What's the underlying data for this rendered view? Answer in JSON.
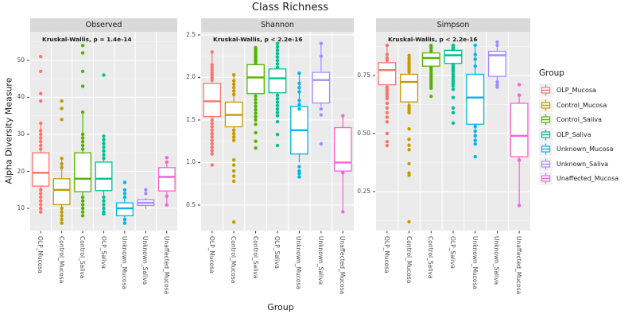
{
  "figure": {
    "title": "Class Richness",
    "x_axis_title": "Group",
    "y_axis_title": "Alpha Diversity Measure"
  },
  "legend": {
    "title": "Group",
    "entries": [
      {
        "label": "OLP_Mucosa",
        "color": "#F8766D"
      },
      {
        "label": "Control_Mucosa",
        "color": "#C49A00"
      },
      {
        "label": "Control_Saliva",
        "color": "#53B400"
      },
      {
        "label": "OLP_Saliva",
        "color": "#00C094"
      },
      {
        "label": "Unknown_Mucosa",
        "color": "#00B6EB"
      },
      {
        "label": "Unknown_Saliva",
        "color": "#A58AFF"
      },
      {
        "label": "Unaffected_Mucosa",
        "color": "#FB61D7"
      }
    ]
  },
  "theme": {
    "panel_bg": "#EBEBEB",
    "strip_bg": "#D9D9D9",
    "grid_color": "#FFFFFF",
    "tick_color": "#333333",
    "tick_label_color": "#4D4D4D",
    "text_color": "#1A1A1A",
    "legend_key_bg": "#F2F2F2"
  },
  "chart_data": {
    "type": "boxplot",
    "title": "Class Richness",
    "xlabel": "Group",
    "ylabel": "Alpha Diversity Measure",
    "legend_position": "right",
    "grid": "on",
    "points_overlay": true,
    "categories": [
      "OLP_Mucosa",
      "Control_Mucosa",
      "Control_Saliva",
      "OLP_Saliva",
      "Unknown_Mucosa",
      "Unknown_Saliva",
      "Unaffected_Mucosa"
    ],
    "facets": [
      {
        "label": "Observed",
        "annotation": "Kruskal-Wallis, p = 1.4e-14",
        "ylim": [
          4,
          57.7
        ],
        "yticks": [
          {
            "v": 10,
            "label": "10"
          },
          {
            "v": 20,
            "label": "20"
          },
          {
            "v": 30,
            "label": "30"
          },
          {
            "v": 40,
            "label": "40"
          },
          {
            "v": 50,
            "label": "50"
          }
        ],
        "groups": [
          {
            "group": "OLP_Mucosa",
            "q1": 16,
            "median": 19.6,
            "q3": 25,
            "whisker_low": 9,
            "whisker_high": 33,
            "points": [
              51,
              47,
              41,
              39,
              33,
              31,
              30,
              29,
              28,
              27,
              26,
              15,
              14,
              13,
              12,
              11,
              10,
              9
            ]
          },
          {
            "group": "Control_Mucosa",
            "q1": 11,
            "median": 15,
            "q3": 18,
            "whisker_low": 6,
            "whisker_high": 23.5,
            "points": [
              39,
              37,
              34,
              23.5,
              22,
              21,
              10,
              9,
              8,
              7,
              6
            ]
          },
          {
            "group": "Control_Saliva",
            "q1": 14.5,
            "median": 18,
            "q3": 25,
            "whisker_low": 8,
            "whisker_high": 36,
            "points": [
              54,
              52,
              47,
              43,
              36,
              30,
              29,
              28,
              27,
              26,
              13,
              12,
              11,
              10,
              9,
              8
            ]
          },
          {
            "group": "OLP_Saliva",
            "q1": 14.8,
            "median": 18,
            "q3": 22.5,
            "whisker_low": 8.5,
            "whisker_high": 29.5,
            "points": [
              46,
              29.5,
              28.5,
              27.5,
              26.5,
              25.5,
              24.5,
              23.5,
              13,
              12,
              11,
              10,
              9,
              8.5
            ]
          },
          {
            "group": "Unknown_Mucosa",
            "q1": 8,
            "median": 10,
            "q3": 11.5,
            "whisker_low": 6,
            "whisker_high": 12.7,
            "points": [
              17,
              15,
              14,
              13,
              7,
              6
            ]
          },
          {
            "group": "Unknown_Saliva",
            "q1": 10.8,
            "median": 11.5,
            "q3": 12.3,
            "whisker_low": 9.8,
            "whisker_high": 12.8,
            "points": [
              15,
              14
            ]
          },
          {
            "group": "Unaffected_Mucosa",
            "q1": 14.7,
            "median": 18.5,
            "q3": 21,
            "whisker_low": 10.9,
            "whisker_high": 22.4,
            "points": [
              23.7,
              22.5,
              13.3,
              10.9
            ]
          }
        ]
      },
      {
        "label": "Shannon",
        "annotation": "Kruskal-Wallis, p < 2.2e-16",
        "ylim": [
          0.2,
          2.537
        ],
        "yticks": [
          {
            "v": 0.5,
            "label": "0.5"
          },
          {
            "v": 1.0,
            "label": "1.0"
          },
          {
            "v": 1.5,
            "label": "1.5"
          },
          {
            "v": 2.0,
            "label": "2.0"
          },
          {
            "v": 2.5,
            "label": "2.5"
          }
        ],
        "groups": [
          {
            "group": "OLP_Mucosa",
            "q1": 1.54,
            "median": 1.72,
            "q3": 1.93,
            "whisker_low": 1.08,
            "whisker_high": 2.3,
            "points": [
              2.3,
              2.15,
              2.12,
              2.09,
              2.06,
              2.03,
              2.0,
              1.97,
              1.5,
              1.46,
              1.42,
              1.38,
              1.34,
              1.3,
              1.26,
              1.22,
              1.18,
              1.14,
              1.1,
              0.97
            ]
          },
          {
            "group": "Control_Mucosa",
            "q1": 1.42,
            "median": 1.56,
            "q3": 1.71,
            "whisker_low": 1.25,
            "whisker_high": 2.03,
            "points": [
              2.03,
              1.96,
              1.92,
              1.88,
              1.84,
              1.8,
              1.38,
              1.34,
              1.3,
              1.26,
              1.03,
              0.97,
              0.9,
              0.84,
              0.78,
              0.3
            ]
          },
          {
            "group": "Control_Saliva",
            "q1": 1.81,
            "median": 2.0,
            "q3": 2.15,
            "whisker_low": 1.5,
            "whisker_high": 2.35,
            "points": [
              2.35,
              2.33,
              2.31,
              2.29,
              2.27,
              2.25,
              2.23,
              2.21,
              2.19,
              2.17,
              1.78,
              1.74,
              1.7,
              1.66,
              1.62,
              1.58,
              1.54,
              1.5,
              1.45,
              1.35,
              1.25,
              1.17
            ]
          },
          {
            "group": "OLP_Saliva",
            "q1": 1.82,
            "median": 1.99,
            "q3": 2.1,
            "whisker_low": 1.55,
            "whisker_high": 2.4,
            "points": [
              2.4,
              2.36,
              2.32,
              2.28,
              2.24,
              2.2,
              2.16,
              2.12,
              1.79,
              1.75,
              1.71,
              1.67,
              1.63,
              1.59,
              1.55,
              1.48,
              1.33,
              1.2
            ]
          },
          {
            "group": "Unknown_Mucosa",
            "q1": 1.1,
            "median": 1.38,
            "q3": 1.66,
            "whisker_low": 1.0,
            "whisker_high": 2.05,
            "points": [
              2.05,
              1.93,
              1.88,
              1.83,
              1.73,
              1.68,
              1.63,
              0.95,
              0.9,
              0.87,
              0.83
            ]
          },
          {
            "group": "Unknown_Saliva",
            "q1": 1.7,
            "median": 1.97,
            "q3": 2.06,
            "whisker_low": 1.66,
            "whisker_high": 2.4,
            "points": [
              2.4,
              2.25,
              1.63,
              1.56,
              1.22
            ]
          },
          {
            "group": "Unaffected_Mucosa",
            "q1": 0.9,
            "median": 1.0,
            "q3": 1.41,
            "whisker_low": 0.42,
            "whisker_high": 1.55,
            "points": [
              1.55,
              0.88,
              0.42
            ]
          }
        ]
      },
      {
        "label": "Simpson",
        "annotation": "Kruskal-Wallis, p < 2.2e-16",
        "ylim": [
          0.082,
          0.938
        ],
        "yticks": [
          {
            "v": 0.25,
            "label": "0.25"
          },
          {
            "v": 0.5,
            "label": "0.50"
          },
          {
            "v": 0.75,
            "label": "0.75"
          }
        ],
        "groups": [
          {
            "group": "OLP_Mucosa",
            "q1": 0.71,
            "median": 0.773,
            "q3": 0.805,
            "whisker_low": 0.65,
            "whisker_high": 0.88,
            "points": [
              0.88,
              0.84,
              0.825,
              0.815,
              0.7,
              0.69,
              0.68,
              0.67,
              0.66,
              0.65,
              0.63,
              0.61,
              0.59,
              0.57,
              0.55,
              0.5,
              0.465,
              0.448
            ]
          },
          {
            "group": "Control_Mucosa",
            "q1": 0.636,
            "median": 0.722,
            "q3": 0.755,
            "whisker_low": 0.59,
            "whisker_high": 0.836,
            "points": [
              0.836,
              0.825,
              0.815,
              0.805,
              0.795,
              0.785,
              0.775,
              0.765,
              0.62,
              0.61,
              0.6,
              0.59,
              0.52,
              0.475,
              0.45,
              0.43,
              0.37,
              0.33,
              0.32,
              0.12
            ]
          },
          {
            "group": "Control_Saliva",
            "q1": 0.79,
            "median": 0.825,
            "q3": 0.847,
            "whisker_low": 0.695,
            "whisker_high": 0.879,
            "points": [
              0.879,
              0.871,
              0.863,
              0.855,
              0.785,
              0.775,
              0.765,
              0.755,
              0.745,
              0.735,
              0.725,
              0.715,
              0.705,
              0.695,
              0.66
            ]
          },
          {
            "group": "OLP_Saliva",
            "q1": 0.802,
            "median": 0.837,
            "q3": 0.858,
            "whisker_low": 0.69,
            "whisker_high": 0.88,
            "points": [
              0.88,
              0.872,
              0.865,
              0.795,
              0.785,
              0.775,
              0.765,
              0.755,
              0.745,
              0.735,
              0.725,
              0.715,
              0.705,
              0.69,
              0.655,
              0.61,
              0.59,
              0.545
            ]
          },
          {
            "group": "Unknown_Mucosa",
            "q1": 0.54,
            "median": 0.655,
            "q3": 0.755,
            "whisker_low": 0.455,
            "whisker_high": 0.88,
            "points": [
              0.88,
              0.84,
              0.82,
              0.79,
              0.53,
              0.51,
              0.49,
              0.47,
              0.455,
              0.4
            ]
          },
          {
            "group": "Unknown_Saliva",
            "q1": 0.746,
            "median": 0.837,
            "q3": 0.854,
            "whisker_low": 0.72,
            "whisker_high": 0.894,
            "points": [
              0.894,
              0.88,
              0.723,
              0.71,
              0.7
            ]
          },
          {
            "group": "Unaffected_Mucosa",
            "q1": 0.4,
            "median": 0.49,
            "q3": 0.63,
            "whisker_low": 0.19,
            "whisker_high": 0.665,
            "points": [
              0.71,
              0.665,
              0.385,
              0.19
            ]
          }
        ]
      }
    ]
  }
}
